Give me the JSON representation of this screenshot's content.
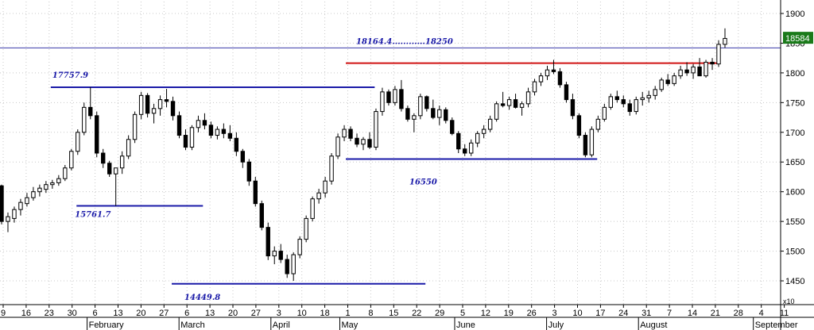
{
  "chart_data": {
    "type": "candlestick",
    "title": "",
    "xlabel": "",
    "ylabel": "",
    "ylim": [
      1410,
      1920
    ],
    "y_ticks": [
      1450,
      1500,
      1550,
      1600,
      1650,
      1700,
      1750,
      1800,
      1850,
      1900
    ],
    "y_multiplier_label": "x10",
    "current_price_label": "18584",
    "current_price": 1858.4,
    "x_tick_labels": [
      "9",
      "16",
      "23",
      "30",
      "6",
      "13",
      "20",
      "27",
      "6",
      "13",
      "20",
      "27",
      "3",
      "10",
      "18",
      "1",
      "8",
      "15",
      "22",
      "29",
      "5",
      "12",
      "19",
      "26",
      "3",
      "10",
      "17",
      "24",
      "31",
      "7",
      "14",
      "21",
      "28",
      "4",
      "11"
    ],
    "month_labels": [
      {
        "label": "February",
        "at_tick": 4
      },
      {
        "label": "March",
        "at_tick": 8
      },
      {
        "label": "April",
        "at_tick": 12
      },
      {
        "label": "May",
        "at_tick": 15
      },
      {
        "label": "June",
        "at_tick": 20
      },
      {
        "label": "July",
        "at_tick": 24
      },
      {
        "label": "August",
        "at_tick": 28
      },
      {
        "label": "September",
        "at_tick": 33
      }
    ],
    "candles": [
      [
        1610,
        1612,
        1545,
        1550
      ],
      [
        1550,
        1565,
        1532,
        1558
      ],
      [
        1555,
        1575,
        1548,
        1570
      ],
      [
        1570,
        1588,
        1560,
        1582
      ],
      [
        1580,
        1598,
        1575,
        1590
      ],
      [
        1590,
        1608,
        1585,
        1600
      ],
      [
        1600,
        1612,
        1592,
        1606
      ],
      [
        1604,
        1618,
        1598,
        1612
      ],
      [
        1612,
        1620,
        1605,
        1615
      ],
      [
        1615,
        1628,
        1610,
        1622
      ],
      [
        1622,
        1645,
        1618,
        1640
      ],
      [
        1640,
        1672,
        1636,
        1668
      ],
      [
        1668,
        1705,
        1662,
        1700
      ],
      [
        1700,
        1750,
        1695,
        1742
      ],
      [
        1742,
        1776,
        1722,
        1728
      ],
      [
        1728,
        1735,
        1658,
        1665
      ],
      [
        1665,
        1672,
        1640,
        1648
      ],
      [
        1648,
        1652,
        1625,
        1630
      ],
      [
        1630,
        1638,
        1576,
        1640
      ],
      [
        1640,
        1668,
        1630,
        1660
      ],
      [
        1660,
        1695,
        1655,
        1688
      ],
      [
        1688,
        1735,
        1682,
        1730
      ],
      [
        1730,
        1768,
        1722,
        1762
      ],
      [
        1762,
        1766,
        1725,
        1732
      ],
      [
        1732,
        1748,
        1715,
        1740
      ],
      [
        1740,
        1762,
        1728,
        1755
      ],
      [
        1755,
        1773,
        1742,
        1752
      ],
      [
        1752,
        1760,
        1720,
        1728
      ],
      [
        1728,
        1735,
        1690,
        1695
      ],
      [
        1695,
        1705,
        1670,
        1675
      ],
      [
        1675,
        1712,
        1670,
        1708
      ],
      [
        1708,
        1728,
        1700,
        1720
      ],
      [
        1720,
        1732,
        1705,
        1712
      ],
      [
        1712,
        1718,
        1690,
        1695
      ],
      [
        1695,
        1710,
        1688,
        1705
      ],
      [
        1705,
        1715,
        1690,
        1698
      ],
      [
        1698,
        1712,
        1685,
        1690
      ],
      [
        1690,
        1700,
        1660,
        1668
      ],
      [
        1668,
        1672,
        1640,
        1650
      ],
      [
        1650,
        1655,
        1610,
        1618
      ],
      [
        1618,
        1625,
        1575,
        1580
      ],
      [
        1580,
        1585,
        1535,
        1540
      ],
      [
        1540,
        1548,
        1485,
        1492
      ],
      [
        1492,
        1508,
        1478,
        1500
      ],
      [
        1500,
        1512,
        1480,
        1486
      ],
      [
        1486,
        1494,
        1455,
        1462
      ],
      [
        1462,
        1498,
        1450,
        1494
      ],
      [
        1494,
        1525,
        1488,
        1520
      ],
      [
        1520,
        1560,
        1515,
        1555
      ],
      [
        1555,
        1592,
        1550,
        1588
      ],
      [
        1588,
        1605,
        1580,
        1598
      ],
      [
        1598,
        1625,
        1590,
        1618
      ],
      [
        1618,
        1665,
        1612,
        1660
      ],
      [
        1660,
        1698,
        1655,
        1692
      ],
      [
        1692,
        1712,
        1685,
        1705
      ],
      [
        1705,
        1710,
        1685,
        1690
      ],
      [
        1690,
        1698,
        1675,
        1680
      ],
      [
        1680,
        1692,
        1670,
        1688
      ],
      [
        1688,
        1700,
        1672,
        1675
      ],
      [
        1675,
        1740,
        1670,
        1735
      ],
      [
        1735,
        1775,
        1728,
        1768
      ],
      [
        1768,
        1772,
        1745,
        1750
      ],
      [
        1750,
        1778,
        1745,
        1772
      ],
      [
        1772,
        1788,
        1735,
        1740
      ],
      [
        1740,
        1745,
        1718,
        1722
      ],
      [
        1722,
        1732,
        1700,
        1728
      ],
      [
        1728,
        1765,
        1722,
        1760
      ],
      [
        1760,
        1762,
        1735,
        1740
      ],
      [
        1740,
        1755,
        1722,
        1725
      ],
      [
        1725,
        1745,
        1712,
        1738
      ],
      [
        1738,
        1742,
        1715,
        1720
      ],
      [
        1720,
        1725,
        1695,
        1698
      ],
      [
        1698,
        1702,
        1665,
        1672
      ],
      [
        1672,
        1680,
        1660,
        1665
      ],
      [
        1665,
        1688,
        1660,
        1682
      ],
      [
        1682,
        1702,
        1675,
        1698
      ],
      [
        1698,
        1712,
        1690,
        1705
      ],
      [
        1705,
        1728,
        1700,
        1722
      ],
      [
        1722,
        1752,
        1718,
        1748
      ],
      [
        1748,
        1768,
        1742,
        1745
      ],
      [
        1745,
        1760,
        1738,
        1755
      ],
      [
        1755,
        1765,
        1740,
        1742
      ],
      [
        1742,
        1752,
        1728,
        1748
      ],
      [
        1748,
        1775,
        1742,
        1768
      ],
      [
        1768,
        1790,
        1762,
        1785
      ],
      [
        1785,
        1800,
        1778,
        1795
      ],
      [
        1795,
        1812,
        1788,
        1805
      ],
      [
        1805,
        1822,
        1798,
        1802
      ],
      [
        1802,
        1808,
        1775,
        1780
      ],
      [
        1780,
        1785,
        1750,
        1755
      ],
      [
        1755,
        1765,
        1722,
        1728
      ],
      [
        1728,
        1732,
        1690,
        1695
      ],
      [
        1695,
        1700,
        1658,
        1662
      ],
      [
        1662,
        1710,
        1658,
        1705
      ],
      [
        1705,
        1728,
        1700,
        1722
      ],
      [
        1722,
        1748,
        1718,
        1742
      ],
      [
        1742,
        1765,
        1738,
        1760
      ],
      [
        1760,
        1770,
        1750,
        1755
      ],
      [
        1755,
        1762,
        1742,
        1748
      ],
      [
        1748,
        1755,
        1728,
        1735
      ],
      [
        1735,
        1760,
        1730,
        1755
      ],
      [
        1755,
        1768,
        1745,
        1758
      ],
      [
        1758,
        1770,
        1750,
        1762
      ],
      [
        1762,
        1778,
        1755,
        1772
      ],
      [
        1772,
        1792,
        1768,
        1788
      ],
      [
        1788,
        1798,
        1778,
        1782
      ],
      [
        1782,
        1800,
        1778,
        1795
      ],
      [
        1795,
        1812,
        1790,
        1805
      ],
      [
        1805,
        1818,
        1795,
        1800
      ],
      [
        1800,
        1815,
        1790,
        1810
      ],
      [
        1810,
        1825,
        1800,
        1795
      ],
      [
        1795,
        1822,
        1792,
        1818
      ],
      [
        1818,
        1825,
        1805,
        1815
      ],
      [
        1815,
        1855,
        1810,
        1848
      ],
      [
        1848,
        1875,
        1842,
        1858
      ]
    ],
    "reference_lines": [
      {
        "name": "resistance-17757",
        "y": 1775.79,
        "x_from_frac": 0.065,
        "x_to_frac": 0.48,
        "color": "#1a1aa8",
        "label": "17757.9"
      },
      {
        "name": "support-15761",
        "y": 1576.17,
        "x_from_frac": 0.098,
        "x_to_frac": 0.26,
        "color": "#1a1aa8",
        "label": "15761.7"
      },
      {
        "name": "support-14449",
        "y": 1444.98,
        "x_from_frac": 0.22,
        "x_to_frac": 0.545,
        "color": "#1a1aa8",
        "label": "14449.8"
      },
      {
        "name": "support-16550",
        "y": 1655.0,
        "x_from_frac": 0.443,
        "x_to_frac": 0.765,
        "color": "#1a1aa8",
        "label": "16550"
      },
      {
        "name": "resistance-18164",
        "y": 1816.44,
        "x_from_frac": 0.443,
        "x_to_frac": 0.92,
        "color": "#d01515",
        "label": ""
      },
      {
        "name": "target-line",
        "y": 1842.0,
        "x_from_frac": 0.0,
        "x_to_frac": 1.0,
        "color": "#3a3aa8",
        "label": "18164.4............18250"
      }
    ]
  }
}
